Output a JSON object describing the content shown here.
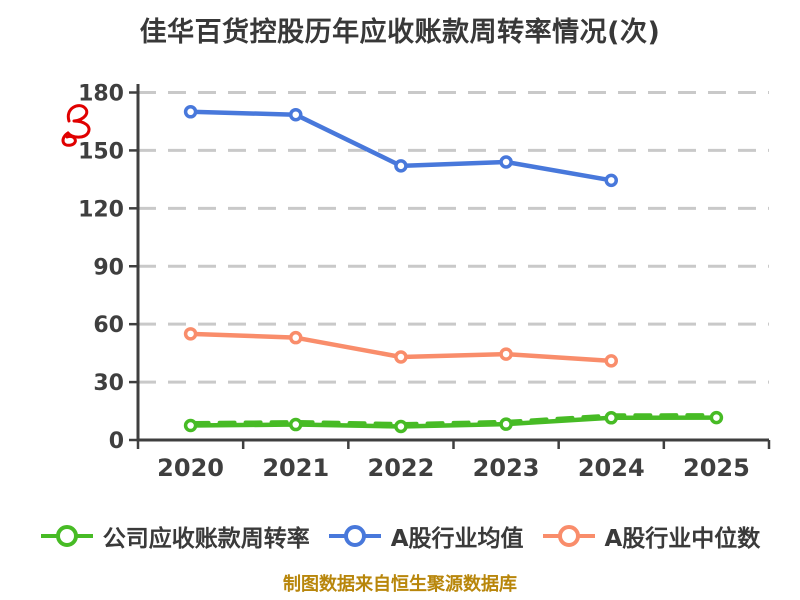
{
  "title": "佳华百货控股历年应收账款周转率情况(次)",
  "footer": "制图数据来自恒生聚源数据库",
  "annotation": {
    "red_mark_color": "#e00000"
  },
  "colors": {
    "grid": "#c9c9c9",
    "axis": "#3f3f3f",
    "title_text": "#383838",
    "footer_text": "#b8860b",
    "marker_fill": "#ffffff"
  },
  "chart_data": {
    "type": "line",
    "title": "佳华百货控股历年应收账款周转率情况(次)",
    "categories": [
      "2020",
      "2021",
      "2022",
      "2023",
      "2024",
      "2025"
    ],
    "series": [
      {
        "name": "公司应收账款周转率",
        "color": "#47bb25",
        "style": "sketchy",
        "values": [
          7.5,
          8,
          7,
          8.2,
          11.5,
          11.6
        ]
      },
      {
        "name": "A股行业均值",
        "color": "#4878db",
        "style": "solid",
        "values": [
          170,
          168.5,
          142,
          144,
          134.5,
          null
        ]
      },
      {
        "name": "A股行业中位数",
        "color": "#f98d6b",
        "style": "solid",
        "values": [
          55,
          53,
          43,
          44.5,
          41,
          null
        ]
      }
    ],
    "xlabel": "",
    "ylabel": "",
    "ylim": [
      0,
      180
    ],
    "ytick_step": 30,
    "grid": "horizontal-dashed",
    "legend_position": "bottom"
  }
}
